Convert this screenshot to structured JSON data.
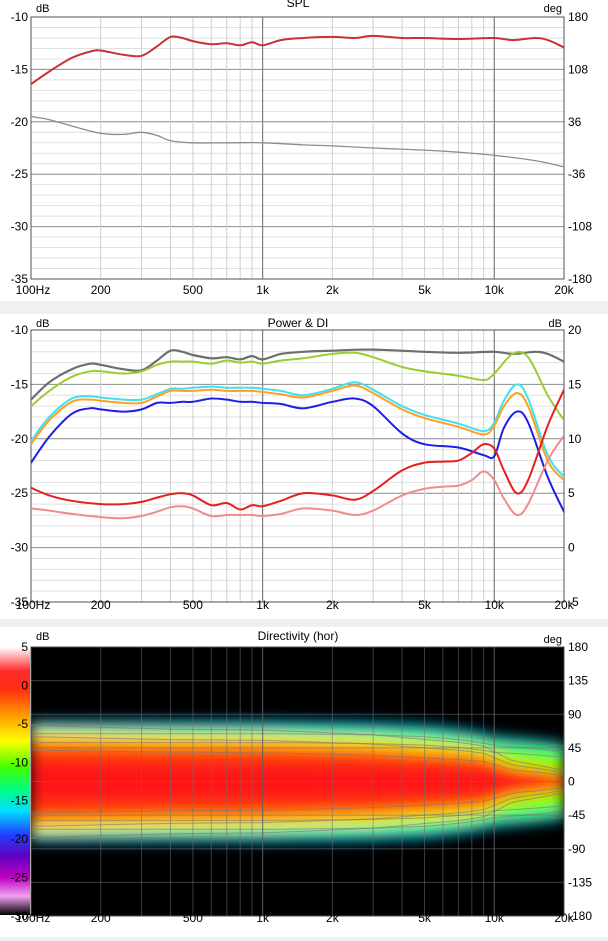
{
  "x_ticks": [
    "100Hz",
    "200",
    "500",
    "1k",
    "2k",
    "5k",
    "10k",
    "20k"
  ],
  "chart_data": [
    {
      "type": "line",
      "title": "SPL",
      "ylabel": "dB",
      "y2label": "deg",
      "xlim": [
        100,
        20000
      ],
      "ylim": [
        -35,
        -10
      ],
      "y2lim": [
        -180,
        180
      ],
      "x_scale": "log",
      "grid": true,
      "yticks": [
        "-10",
        "-15",
        "-20",
        "-25",
        "-30",
        "-35"
      ],
      "y2ticks": [
        "180",
        "108",
        "36",
        "-36",
        "-108",
        "-180"
      ],
      "series": [
        {
          "color": "#c83232",
          "width": 2,
          "x": [
            100,
            120,
            150,
            180,
            200,
            250,
            300,
            350,
            400,
            450,
            500,
            600,
            700,
            800,
            900,
            1000,
            1200,
            1500,
            2000,
            2500,
            3000,
            4000,
            5000,
            7000,
            10000,
            12000,
            15000,
            17000,
            20000
          ],
          "y": [
            -16.4,
            -15.2,
            -13.9,
            -13.3,
            -13.2,
            -13.6,
            -13.7,
            -12.8,
            -11.9,
            -12.0,
            -12.3,
            -12.6,
            -12.5,
            -12.7,
            -12.4,
            -12.7,
            -12.2,
            -12.0,
            -11.9,
            -12.0,
            -11.8,
            -12.0,
            -12.0,
            -12.1,
            -12.0,
            -12.2,
            -12.0,
            -12.2,
            -12.9
          ]
        },
        {
          "color": "#8c8c8c",
          "width": 1.3,
          "x": [
            100,
            120,
            150,
            200,
            250,
            300,
            350,
            400,
            500,
            700,
            1000,
            1500,
            2000,
            3000,
            5000,
            7000,
            10000,
            15000,
            20000
          ],
          "y": [
            -19.5,
            -19.8,
            -20.4,
            -21.1,
            -21.2,
            -21.0,
            -21.3,
            -21.8,
            -22.0,
            -22.0,
            -22.0,
            -22.2,
            -22.3,
            -22.5,
            -22.7,
            -22.9,
            -23.2,
            -23.7,
            -24.3
          ]
        }
      ]
    },
    {
      "type": "line",
      "title": "Power & DI",
      "ylabel": "dB",
      "y2label": "dB",
      "xlim": [
        100,
        20000
      ],
      "ylim": [
        -35,
        -10
      ],
      "y2lim": [
        -5,
        20
      ],
      "x_scale": "log",
      "grid": true,
      "yticks": [
        "-10",
        "-15",
        "-20",
        "-25",
        "-30",
        "-35"
      ],
      "y2ticks": [
        "20",
        "15",
        "10",
        "5",
        "0",
        "-5"
      ],
      "series": [
        {
          "color": "#6e6e6e",
          "width": 2.2,
          "x": [
            100,
            120,
            150,
            180,
            200,
            250,
            300,
            350,
            400,
            450,
            500,
            600,
            700,
            800,
            900,
            1000,
            1200,
            1500,
            2000,
            3000,
            5000,
            7000,
            10000,
            12000,
            15000,
            17000,
            20000
          ],
          "y": [
            -16.4,
            -14.8,
            -13.6,
            -13.1,
            -13.2,
            -13.6,
            -13.7,
            -12.8,
            -11.9,
            -12.0,
            -12.3,
            -12.6,
            -12.5,
            -12.7,
            -12.4,
            -12.7,
            -12.2,
            -12.0,
            -11.9,
            -11.8,
            -12.0,
            -12.1,
            -12.0,
            -12.2,
            -12.0,
            -12.2,
            -12.9
          ]
        },
        {
          "color": "#9acd32",
          "width": 2,
          "x": [
            100,
            120,
            150,
            180,
            200,
            250,
            300,
            350,
            400,
            450,
            500,
            600,
            700,
            800,
            900,
            1000,
            1200,
            1500,
            2000,
            2500,
            3000,
            4000,
            5000,
            7000,
            9000,
            10000,
            12000,
            14000,
            17000,
            20000
          ],
          "y": [
            -17.0,
            -15.6,
            -14.3,
            -13.8,
            -13.8,
            -14.0,
            -13.8,
            -13.2,
            -12.9,
            -12.9,
            -12.9,
            -13.1,
            -12.8,
            -13.0,
            -12.9,
            -13.1,
            -12.8,
            -12.6,
            -12.2,
            -12.1,
            -12.5,
            -13.4,
            -13.8,
            -14.2,
            -14.6,
            -14.0,
            -12.2,
            -12.5,
            -16.0,
            -18.3
          ]
        },
        {
          "color": "#40e0f0",
          "width": 2,
          "x": [
            100,
            120,
            150,
            180,
            200,
            250,
            300,
            350,
            400,
            450,
            500,
            600,
            700,
            800,
            900,
            1000,
            1200,
            1500,
            2000,
            2500,
            3000,
            4000,
            5000,
            7000,
            9000,
            10000,
            11000,
            12500,
            14000,
            17000,
            20000
          ],
          "y": [
            -20.2,
            -18.0,
            -16.3,
            -16.1,
            -16.2,
            -16.4,
            -16.4,
            -15.9,
            -15.4,
            -15.4,
            -15.3,
            -15.2,
            -15.3,
            -15.3,
            -15.3,
            -15.4,
            -15.6,
            -16.0,
            -15.4,
            -14.8,
            -15.5,
            -17.0,
            -17.8,
            -18.6,
            -19.3,
            -18.5,
            -16.5,
            -15.0,
            -16.3,
            -21.5,
            -23.5
          ]
        },
        {
          "color": "#ffa020",
          "width": 2,
          "x": [
            100,
            120,
            150,
            180,
            200,
            250,
            300,
            350,
            400,
            450,
            500,
            600,
            700,
            800,
            900,
            1000,
            1200,
            1500,
            2000,
            2500,
            3000,
            4000,
            5000,
            7000,
            9000,
            10000,
            11000,
            12500,
            14000,
            17000,
            20000
          ],
          "y": [
            -20.5,
            -18.3,
            -16.6,
            -16.4,
            -16.5,
            -16.7,
            -16.7,
            -16.1,
            -15.6,
            -15.6,
            -15.6,
            -15.5,
            -15.6,
            -15.6,
            -15.6,
            -15.7,
            -15.9,
            -16.2,
            -15.6,
            -15.1,
            -15.8,
            -17.3,
            -18.1,
            -18.9,
            -19.6,
            -18.8,
            -17.0,
            -15.8,
            -17.0,
            -22.0,
            -23.8
          ]
        },
        {
          "color": "#1e1ee6",
          "width": 2,
          "x": [
            100,
            120,
            150,
            180,
            200,
            250,
            300,
            350,
            400,
            450,
            500,
            600,
            700,
            800,
            900,
            1000,
            1200,
            1500,
            2000,
            2500,
            3000,
            4000,
            5000,
            7000,
            9000,
            10000,
            11000,
            12500,
            14000,
            17000,
            20000
          ],
          "y": [
            -22.2,
            -19.8,
            -17.7,
            -17.2,
            -17.3,
            -17.5,
            -17.3,
            -16.7,
            -16.7,
            -16.6,
            -16.6,
            -16.3,
            -16.4,
            -16.6,
            -16.6,
            -16.7,
            -16.8,
            -17.2,
            -16.6,
            -16.3,
            -17.0,
            -19.5,
            -20.5,
            -20.8,
            -21.5,
            -21.6,
            -19.0,
            -17.5,
            -18.5,
            -23.5,
            -26.7
          ]
        },
        {
          "color": "#e61e1e",
          "width": 2,
          "x": [
            100,
            120,
            150,
            200,
            250,
            300,
            350,
            400,
            450,
            500,
            600,
            700,
            800,
            900,
            1000,
            1200,
            1500,
            2000,
            2500,
            3000,
            4000,
            5000,
            6000,
            7000,
            8000,
            9000,
            10000,
            11000,
            12500,
            14000,
            17000,
            20000
          ],
          "y": [
            -24.5,
            -25.2,
            -25.7,
            -26.0,
            -26.0,
            -25.8,
            -25.4,
            -25.1,
            -25.0,
            -25.2,
            -26.1,
            -25.9,
            -26.5,
            -26.1,
            -26.2,
            -25.7,
            -25.0,
            -25.2,
            -25.6,
            -24.8,
            -22.9,
            -22.2,
            -22.1,
            -22.0,
            -21.3,
            -20.5,
            -20.9,
            -22.9,
            -25.0,
            -23.8,
            -18.8,
            -15.5
          ]
        },
        {
          "color": "#f08c8c",
          "width": 2,
          "x": [
            100,
            120,
            150,
            200,
            250,
            300,
            350,
            400,
            450,
            500,
            600,
            700,
            800,
            900,
            1000,
            1200,
            1500,
            2000,
            2500,
            3000,
            4000,
            5000,
            6000,
            7000,
            8000,
            9000,
            10000,
            11000,
            12500,
            14000,
            17000,
            20000
          ],
          "y": [
            -26.4,
            -26.6,
            -26.9,
            -27.2,
            -27.3,
            -27.1,
            -26.7,
            -26.3,
            -26.2,
            -26.4,
            -27.1,
            -27.0,
            -27.0,
            -27.0,
            -27.1,
            -26.9,
            -26.4,
            -26.6,
            -27.0,
            -26.6,
            -25.2,
            -24.6,
            -24.4,
            -24.3,
            -23.8,
            -23.0,
            -23.8,
            -25.5,
            -27.0,
            -26.0,
            -22.0,
            -19.7
          ]
        }
      ]
    },
    {
      "type": "heatmap",
      "title": "Directivity (hor)",
      "ylabel": "dB",
      "y2label": "deg",
      "xlim": [
        100,
        20000
      ],
      "x_scale": "log",
      "ylim": [
        -180,
        180
      ],
      "yticks": [
        "5",
        "0",
        "-5",
        "-10",
        "-15",
        "-20",
        "-25",
        "-30"
      ],
      "y2ticks": [
        "180",
        "135",
        "90",
        "45",
        "0",
        "-45",
        "-90",
        "-135",
        "-180"
      ],
      "colorscale_db": [
        5,
        -30
      ],
      "beamwidth_deg": {
        "freq": [
          100,
          200,
          400,
          1000,
          2000,
          3000,
          5000,
          7000,
          9000,
          10000,
          12000,
          15000,
          20000
        ],
        "minus6": [
          60,
          58,
          56,
          55,
          52,
          50,
          45,
          42,
          38,
          32,
          22,
          18,
          12
        ],
        "minus12": [
          80,
          80,
          80,
          80,
          79,
          78,
          75,
          70,
          64,
          60,
          58,
          55,
          50
        ]
      }
    }
  ]
}
